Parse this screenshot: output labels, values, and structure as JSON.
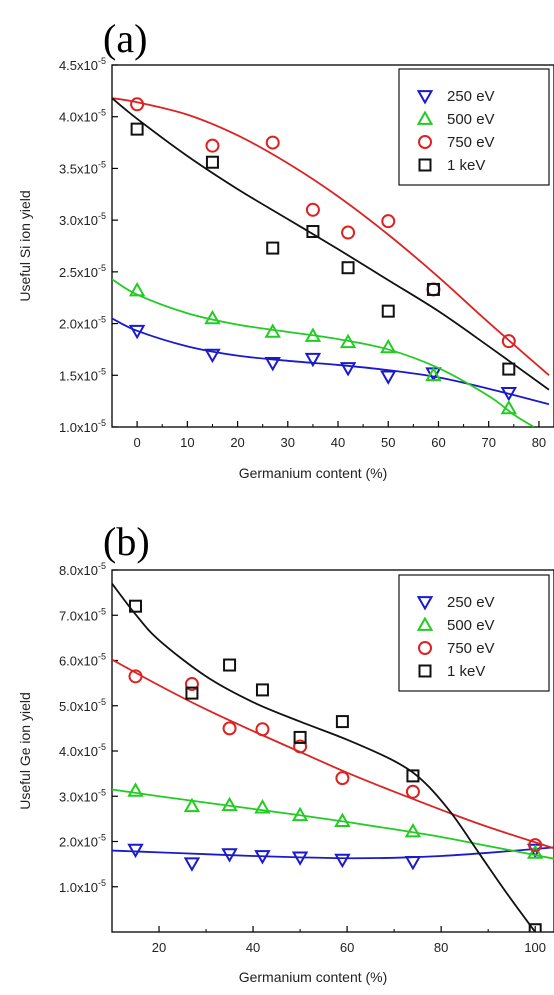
{
  "chart_data": [
    {
      "type": "scatter",
      "panel_label": "(a)",
      "xlabel": "Germanium content (%)",
      "ylabel": "Useful Si ion yield",
      "xlim": [
        -5,
        83
      ],
      "ylim": [
        1.0,
        4.5
      ],
      "y_exponent": "-5",
      "x_ticks": [
        0,
        10,
        20,
        30,
        40,
        50,
        60,
        70,
        80
      ],
      "y_ticks": [
        1.0,
        1.5,
        2.0,
        2.5,
        3.0,
        3.5,
        4.0,
        4.5
      ],
      "y_tick_labels": [
        "1.0x10",
        "1.5x10",
        "2.0x10",
        "2.5x10",
        "3.0x10",
        "3.5x10",
        "4.0x10",
        "4.5x10"
      ],
      "legend_position": "top-right",
      "series": [
        {
          "name": "250 eV",
          "marker": "triangle-down",
          "color": "#1a1acc",
          "points": [
            [
              0,
              1.93
            ],
            [
              15,
              1.7
            ],
            [
              27,
              1.62
            ],
            [
              35,
              1.66
            ],
            [
              42,
              1.57
            ],
            [
              50,
              1.49
            ],
            [
              59,
              1.52
            ],
            [
              74,
              1.33
            ]
          ],
          "fit": [
            [
              -5,
              2.05
            ],
            [
              0,
              1.93
            ],
            [
              10,
              1.78
            ],
            [
              20,
              1.69
            ],
            [
              30,
              1.64
            ],
            [
              40,
              1.6
            ],
            [
              50,
              1.55
            ],
            [
              60,
              1.48
            ],
            [
              70,
              1.37
            ],
            [
              82,
              1.22
            ]
          ]
        },
        {
          "name": "500 eV",
          "marker": "triangle-up",
          "color": "#22cc22",
          "points": [
            [
              0,
              2.32
            ],
            [
              15,
              2.05
            ],
            [
              27,
              1.92
            ],
            [
              35,
              1.88
            ],
            [
              42,
              1.82
            ],
            [
              50,
              1.77
            ],
            [
              59,
              1.5
            ],
            [
              74,
              1.18
            ]
          ],
          "fit": [
            [
              -5,
              2.43
            ],
            [
              0,
              2.28
            ],
            [
              10,
              2.1
            ],
            [
              20,
              1.99
            ],
            [
              30,
              1.92
            ],
            [
              40,
              1.85
            ],
            [
              50,
              1.75
            ],
            [
              60,
              1.57
            ],
            [
              70,
              1.3
            ],
            [
              75,
              1.12
            ],
            [
              79,
              1.0
            ]
          ]
        },
        {
          "name": "750 eV",
          "marker": "circle",
          "color": "#dd2222",
          "points": [
            [
              0,
              4.12
            ],
            [
              15,
              3.72
            ],
            [
              27,
              3.75
            ],
            [
              35,
              3.1
            ],
            [
              42,
              2.88
            ],
            [
              50,
              2.99
            ],
            [
              59,
              2.33
            ],
            [
              74,
              1.83
            ]
          ],
          "fit": [
            [
              -5,
              4.18
            ],
            [
              0,
              4.14
            ],
            [
              10,
              4.02
            ],
            [
              20,
              3.82
            ],
            [
              30,
              3.55
            ],
            [
              40,
              3.23
            ],
            [
              50,
              2.86
            ],
            [
              60,
              2.45
            ],
            [
              70,
              2.01
            ],
            [
              82,
              1.5
            ]
          ]
        },
        {
          "name": "1 keV",
          "marker": "square",
          "color": "#111111",
          "points": [
            [
              0,
              3.88
            ],
            [
              15,
              3.56
            ],
            [
              27,
              2.73
            ],
            [
              35,
              2.89
            ],
            [
              42,
              2.54
            ],
            [
              50,
              2.12
            ],
            [
              59,
              2.33
            ],
            [
              74,
              1.56
            ]
          ],
          "fit": [
            [
              -5,
              4.18
            ],
            [
              0,
              3.98
            ],
            [
              10,
              3.62
            ],
            [
              20,
              3.3
            ],
            [
              30,
              3.01
            ],
            [
              40,
              2.72
            ],
            [
              50,
              2.42
            ],
            [
              60,
              2.12
            ],
            [
              70,
              1.78
            ],
            [
              82,
              1.36
            ]
          ]
        }
      ]
    },
    {
      "type": "scatter",
      "panel_label": "(b)",
      "xlabel": "Germanium content (%)",
      "ylabel": "Useful Ge ion yield",
      "xlim": [
        10,
        104
      ],
      "ylim": [
        0,
        8.0
      ],
      "y_exponent": "-5",
      "x_ticks": [
        20,
        40,
        60,
        80,
        100
      ],
      "y_ticks": [
        1.0,
        2.0,
        3.0,
        4.0,
        5.0,
        6.0,
        7.0,
        8.0
      ],
      "y_tick_labels": [
        "1.0x10",
        "2.0x10",
        "3.0x10",
        "4.0x10",
        "5.0x10",
        "6.0x10",
        "7.0x10",
        "8.0x10"
      ],
      "legend_position": "top-right",
      "series": [
        {
          "name": "250 eV",
          "marker": "triangle-down",
          "color": "#1a1acc",
          "points": [
            [
              15,
              1.82
            ],
            [
              27,
              1.52
            ],
            [
              35,
              1.72
            ],
            [
              42,
              1.68
            ],
            [
              50,
              1.65
            ],
            [
              59,
              1.6
            ],
            [
              74,
              1.55
            ],
            [
              100,
              1.82
            ]
          ],
          "fit": [
            [
              10,
              1.8
            ],
            [
              20,
              1.76
            ],
            [
              30,
              1.72
            ],
            [
              40,
              1.68
            ],
            [
              50,
              1.65
            ],
            [
              60,
              1.63
            ],
            [
              70,
              1.64
            ],
            [
              80,
              1.68
            ],
            [
              90,
              1.75
            ],
            [
              104,
              1.87
            ]
          ]
        },
        {
          "name": "500 eV",
          "marker": "triangle-up",
          "color": "#22cc22",
          "points": [
            [
              15,
              3.12
            ],
            [
              27,
              2.78
            ],
            [
              35,
              2.8
            ],
            [
              42,
              2.75
            ],
            [
              50,
              2.58
            ],
            [
              59,
              2.45
            ],
            [
              74,
              2.22
            ],
            [
              100,
              1.75
            ]
          ],
          "fit": [
            [
              10,
              3.15
            ],
            [
              20,
              3.0
            ],
            [
              30,
              2.86
            ],
            [
              40,
              2.72
            ],
            [
              50,
              2.58
            ],
            [
              60,
              2.43
            ],
            [
              70,
              2.27
            ],
            [
              80,
              2.1
            ],
            [
              90,
              1.9
            ],
            [
              104,
              1.62
            ]
          ]
        },
        {
          "name": "750 eV",
          "marker": "circle",
          "color": "#dd2222",
          "points": [
            [
              15,
              5.65
            ],
            [
              27,
              5.48
            ],
            [
              35,
              4.5
            ],
            [
              42,
              4.48
            ],
            [
              50,
              4.1
            ],
            [
              59,
              3.4
            ],
            [
              74,
              3.1
            ],
            [
              100,
              1.92
            ]
          ],
          "fit": [
            [
              10,
              6.02
            ],
            [
              20,
              5.45
            ],
            [
              30,
              4.92
            ],
            [
              40,
              4.44
            ],
            [
              50,
              3.98
            ],
            [
              60,
              3.52
            ],
            [
              70,
              3.1
            ],
            [
              80,
              2.7
            ],
            [
              90,
              2.32
            ],
            [
              104,
              1.85
            ]
          ]
        },
        {
          "name": "1 keV",
          "marker": "square",
          "color": "#111111",
          "points": [
            [
              15,
              7.2
            ],
            [
              27,
              5.28
            ],
            [
              35,
              5.9
            ],
            [
              42,
              5.35
            ],
            [
              50,
              4.3
            ],
            [
              59,
              4.65
            ],
            [
              74,
              3.45
            ],
            [
              100,
              0.05
            ]
          ],
          "fit": [
            [
              10,
              7.7
            ],
            [
              15,
              7.02
            ],
            [
              20,
              6.45
            ],
            [
              30,
              5.65
            ],
            [
              40,
              5.08
            ],
            [
              50,
              4.65
            ],
            [
              60,
              4.25
            ],
            [
              70,
              3.78
            ],
            [
              76,
              3.35
            ],
            [
              82,
              2.65
            ],
            [
              88,
              1.75
            ],
            [
              94,
              0.85
            ],
            [
              100,
              0.0
            ]
          ]
        }
      ]
    }
  ]
}
